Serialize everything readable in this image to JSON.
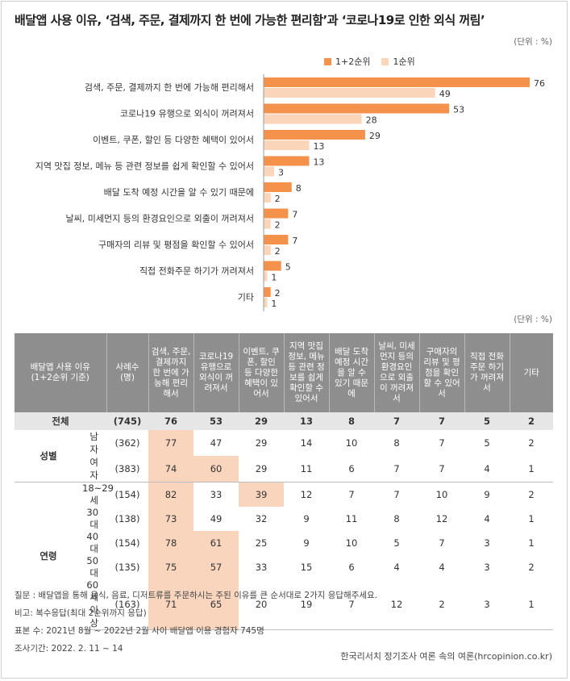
{
  "title": "배달앱 사용 이유, ‘검색, 주문, 결제까지 한 번에 가능한 편리함’과 ‘코로나19로 인한 외식 꺼림’",
  "unit_label": "(단위 : %)",
  "colors": {
    "primary": "#f4914a",
    "secondary": "#fbd5b9",
    "header_bg": "#8e8e8e",
    "highlight": "#f9d5bd",
    "total_bg": "#e6e6e6"
  },
  "chart_data": {
    "type": "bar",
    "orientation": "horizontal",
    "categories": [
      "검색, 주문, 결제까지 한 번에 가능해 편리해서",
      "코로나19 유행으로 외식이 꺼려져서",
      "이벤트, 쿠폰, 할인 등 다양한 혜택이 있어서",
      "지역 맛집 정보, 메뉴 등 관련 정보를 쉽게 확인할 수 있어서",
      "배달 도착 예정 시간을 알 수 있기 때문에",
      "날씨, 미세먼지 등의 환경요인으로 외출이 꺼려져서",
      "구매자의 리뷰 및 평점을 확인할 수 있어서",
      "직접 전화주문 하기가 꺼려져서",
      "기타"
    ],
    "series": [
      {
        "name": "1+2순위",
        "values": [
          76,
          53,
          29,
          13,
          8,
          7,
          7,
          5,
          2
        ],
        "color": "#f4914a"
      },
      {
        "name": "1순위",
        "values": [
          49,
          28,
          13,
          3,
          2,
          2,
          2,
          1,
          1
        ],
        "color": "#fbd5b9"
      }
    ],
    "xlim": [
      0,
      76
    ],
    "legend_position": "top-right"
  },
  "table": {
    "corner_label": "배달앱 사용 이유\n(1+2순위 기준)",
    "sample_label": "사례수\n(명)",
    "columns": [
      "검색, 주문,\n결제까지\n한 번에 가\n능해 편리\n해서",
      "코로나19\n유행으로\n외식이 꺼\n려져서",
      "이벤트, 쿠\n폰, 할인\n등 다양한\n혜택이 있\n어서",
      "지역 맛집\n정보, 메뉴\n등 관련 정\n보를 쉽게\n확인할 수\n있어서",
      "배달 도착\n예정 시간\n을 알 수\n있기 때문\n에",
      "날씨, 미세\n먼지 등의\n환경요인\n으로 외출\n이 꺼려져\n서",
      "구매자의\n리뷰 및 평\n점을 확인\n할 수 있어\n서",
      "직접 전화\n주문 하기\n가 꺼려져\n서",
      "기타"
    ],
    "total": {
      "label": "전체",
      "n": "(745)",
      "values": [
        "76",
        "53",
        "29",
        "13",
        "8",
        "7",
        "7",
        "5",
        "2"
      ]
    },
    "groups": [
      {
        "label": "성별",
        "rows": [
          {
            "label": "남자",
            "n": "(362)",
            "values": [
              "77",
              "47",
              "29",
              "14",
              "10",
              "8",
              "7",
              "5",
              "2"
            ],
            "highlight": [
              0
            ]
          },
          {
            "label": "여자",
            "n": "(383)",
            "values": [
              "74",
              "60",
              "29",
              "11",
              "6",
              "7",
              "7",
              "4",
              "1"
            ],
            "highlight": [
              0,
              1
            ]
          }
        ]
      },
      {
        "label": "연령",
        "rows": [
          {
            "label": "18~29세",
            "n": "(154)",
            "values": [
              "82",
              "33",
              "39",
              "12",
              "7",
              "7",
              "10",
              "9",
              "2"
            ],
            "highlight": [
              0,
              2
            ]
          },
          {
            "label": "30대",
            "n": "(138)",
            "values": [
              "73",
              "49",
              "32",
              "9",
              "11",
              "8",
              "12",
              "4",
              "1"
            ],
            "highlight": [
              0
            ]
          },
          {
            "label": "40대",
            "n": "(154)",
            "values": [
              "78",
              "61",
              "25",
              "9",
              "10",
              "5",
              "7",
              "3",
              "1"
            ],
            "highlight": [
              0,
              1
            ]
          },
          {
            "label": "50대",
            "n": "(135)",
            "values": [
              "75",
              "57",
              "33",
              "15",
              "6",
              "4",
              "4",
              "3",
              "2"
            ],
            "highlight": [
              0,
              1
            ]
          },
          {
            "label": "60세 이상",
            "n": "(163)",
            "values": [
              "71",
              "65",
              "20",
              "19",
              "7",
              "12",
              "2",
              "3",
              "1"
            ],
            "highlight": [
              0,
              1
            ]
          }
        ]
      }
    ]
  },
  "notes": [
    "질문 : 배달앱을 통해 음식, 음료, 디저트류를 주문하시는 주된 이유를 큰 순서대로 2가지 응답해주세요.",
    "비고: 복수응답(최대 2순위까지 응답)",
    "표본 수: 2021년 8월 ~ 2022년 2월 사이 배달앱  이용 경험자 745명",
    "조사기간: 2022. 2. 11 ~ 14"
  ],
  "source": "한국리서치 정기조사 여론 속의 여론(hrcopinion.co.kr)"
}
